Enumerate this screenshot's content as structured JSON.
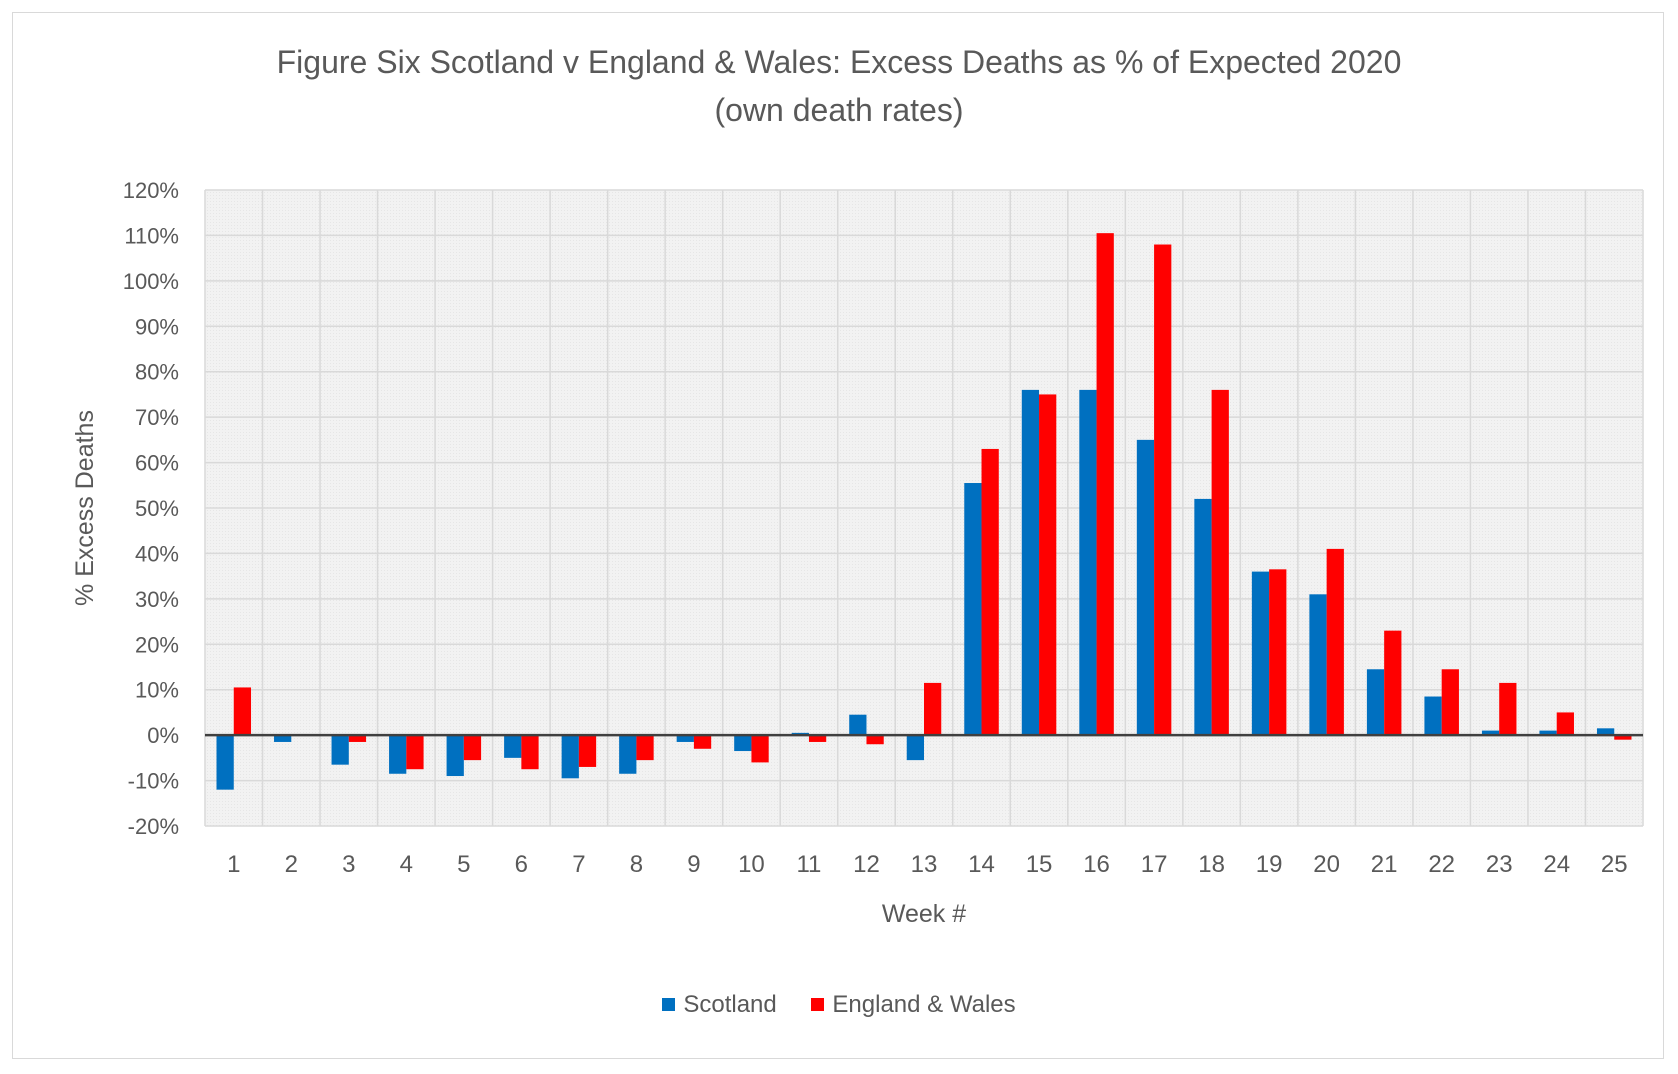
{
  "chart_data": {
    "type": "bar",
    "title": "Figure Six Scotland v England & Wales: Excess Deaths as % of Expected 2020",
    "subtitle": "(own death rates)",
    "xlabel": "Week #",
    "ylabel": "% Excess Deaths",
    "categories": [
      "1",
      "2",
      "3",
      "4",
      "5",
      "6",
      "7",
      "8",
      "9",
      "10",
      "11",
      "12",
      "13",
      "14",
      "15",
      "16",
      "17",
      "18",
      "19",
      "20",
      "21",
      "22",
      "23",
      "24",
      "25"
    ],
    "ylim": [
      -20,
      120
    ],
    "yticks": [
      -20,
      -10,
      0,
      10,
      20,
      30,
      40,
      50,
      60,
      70,
      80,
      90,
      100,
      110,
      120
    ],
    "ytick_labels": [
      "-20%",
      "-10%",
      "0%",
      "10%",
      "20%",
      "30%",
      "40%",
      "50%",
      "60%",
      "70%",
      "80%",
      "90%",
      "100%",
      "110%",
      "120%"
    ],
    "grid": true,
    "legend_position": "bottom",
    "series": [
      {
        "name": "Scotland",
        "color": "#0070c0",
        "values": [
          -12,
          -1.5,
          -6.5,
          -8.5,
          -9,
          -5,
          -9.5,
          -8.5,
          -1.5,
          -3.5,
          0.5,
          4.5,
          -5.5,
          55.5,
          76,
          76,
          65,
          52,
          36,
          31,
          14.5,
          8.5,
          1,
          1,
          1.5
        ]
      },
      {
        "name": "England & Wales",
        "color": "#ff0000",
        "values": [
          10.5,
          0,
          -1.5,
          -7.5,
          -5.5,
          -7.5,
          -7,
          -5.5,
          -3,
          -6,
          -1.5,
          -2,
          11.5,
          63,
          75,
          110.5,
          108,
          76,
          36.5,
          41,
          23,
          14.5,
          11.5,
          5,
          -1
        ]
      }
    ]
  }
}
